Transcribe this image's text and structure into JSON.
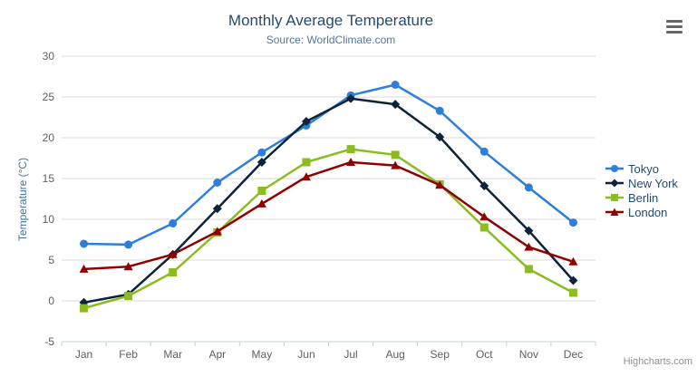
{
  "chart_data": {
    "type": "line",
    "title": "Monthly Average Temperature",
    "subtitle": "Source: WorldClimate.com",
    "categories": [
      "Jan",
      "Feb",
      "Mar",
      "Apr",
      "May",
      "Jun",
      "Jul",
      "Aug",
      "Sep",
      "Oct",
      "Nov",
      "Dec"
    ],
    "xlabel": "",
    "ylabel": "Temperature (°C)",
    "ylim": [
      -5,
      30
    ],
    "yticks": [
      -5,
      0,
      5,
      10,
      15,
      20,
      25,
      30
    ],
    "grid": true,
    "legend_position": "right",
    "series": [
      {
        "name": "Tokyo",
        "color": "#2f7ed8",
        "marker": "circle",
        "values": [
          7.0,
          6.9,
          9.5,
          14.5,
          18.2,
          21.5,
          25.2,
          26.5,
          23.3,
          18.3,
          13.9,
          9.6
        ]
      },
      {
        "name": "New York",
        "color": "#0d233a",
        "marker": "diamond",
        "values": [
          -0.2,
          0.8,
          5.7,
          11.3,
          17.0,
          22.0,
          24.8,
          24.1,
          20.1,
          14.1,
          8.6,
          2.5
        ]
      },
      {
        "name": "Berlin",
        "color": "#8bbc21",
        "marker": "square",
        "values": [
          -0.9,
          0.6,
          3.5,
          8.4,
          13.5,
          17.0,
          18.6,
          17.9,
          14.3,
          9.0,
          3.9,
          1.0
        ]
      },
      {
        "name": "London",
        "color": "#910000",
        "marker": "triangle",
        "values": [
          3.9,
          4.2,
          5.7,
          8.5,
          11.9,
          15.2,
          17.0,
          16.6,
          14.2,
          10.3,
          6.6,
          4.8
        ]
      }
    ]
  },
  "credits": "Highcharts.com",
  "colors": {
    "grid_line": "#d8d8d8",
    "axis_line": "#c0d0e0",
    "axis_label": "#606060",
    "title": "#274b6d",
    "subtitle": "#55769c",
    "y_axis_title": "#4572a7",
    "legend_text": "#274b6d",
    "credits_text": "#909090",
    "menu_icon": "#666666"
  }
}
